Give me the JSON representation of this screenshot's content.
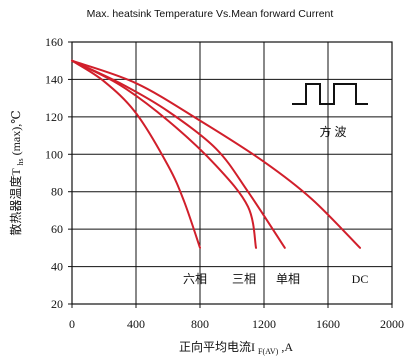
{
  "chart_data": {
    "type": "line",
    "title": "Max. heatsink Temperature Vs.Mean forward Current",
    "xlabel": {
      "main": "正向平均电流I",
      "sub": "F(AV)",
      "tail": ",A"
    },
    "ylabel": {
      "main": "散热器温度T",
      "sub": "hs",
      "tail": "(max),℃"
    },
    "xlim": [
      0,
      2000
    ],
    "ylim": [
      20,
      160
    ],
    "x_ticks": [
      0,
      400,
      800,
      1200,
      1600,
      2000
    ],
    "y_ticks": [
      20,
      40,
      60,
      80,
      100,
      120,
      140,
      160
    ],
    "grid": {
      "vertical": [
        400,
        800,
        1200,
        1600
      ],
      "horizontal": [
        40,
        60,
        80,
        100,
        120,
        140
      ]
    },
    "series": [
      {
        "name": "六相",
        "color": "#d11f2b",
        "points": [
          [
            0,
            150
          ],
          [
            200,
            139
          ],
          [
            400,
            122
          ],
          [
            600,
            94
          ],
          [
            700,
            75
          ],
          [
            800,
            50
          ]
        ]
      },
      {
        "name": "三相",
        "color": "#d11f2b",
        "points": [
          [
            0,
            150
          ],
          [
            300,
            137
          ],
          [
            600,
            118
          ],
          [
            900,
            94
          ],
          [
            1100,
            72
          ],
          [
            1150,
            50
          ]
        ]
      },
      {
        "name": "单相",
        "color": "#d11f2b",
        "points": [
          [
            0,
            150
          ],
          [
            300,
            138
          ],
          [
            600,
            123
          ],
          [
            900,
            103
          ],
          [
            1100,
            80
          ],
          [
            1330,
            50
          ]
        ]
      },
      {
        "name": "DC",
        "color": "#d11f2b",
        "points": [
          [
            0,
            150
          ],
          [
            400,
            138
          ],
          [
            800,
            118
          ],
          [
            1200,
            96
          ],
          [
            1500,
            76
          ],
          [
            1800,
            50
          ]
        ]
      }
    ],
    "annotations": [
      {
        "text": "方  波",
        "type": "waveform-label"
      }
    ]
  }
}
